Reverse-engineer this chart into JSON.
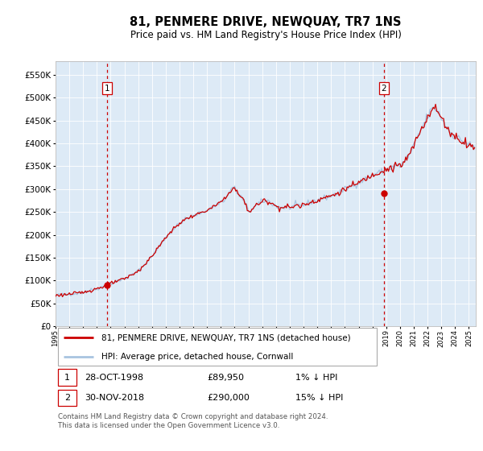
{
  "title": "81, PENMERE DRIVE, NEWQUAY, TR7 1NS",
  "subtitle": "Price paid vs. HM Land Registry's House Price Index (HPI)",
  "legend_line1": "81, PENMERE DRIVE, NEWQUAY, TR7 1NS (detached house)",
  "legend_line2": "HPI: Average price, detached house, Cornwall",
  "sale1_date": "28-OCT-1998",
  "sale1_price": 89950,
  "sale2_date": "30-NOV-2018",
  "sale2_price": 290000,
  "sale1_hpi_pct": "1% ↓ HPI",
  "sale2_hpi_pct": "15% ↓ HPI",
  "footer": "Contains HM Land Registry data © Crown copyright and database right 2024.\nThis data is licensed under the Open Government Licence v3.0.",
  "hpi_color": "#a8c4e0",
  "price_color": "#cc0000",
  "bg_color": "#ddeaf6",
  "vline_color": "#cc0000",
  "ylim_max": 580000,
  "xlim_start": 1995.0,
  "xlim_end": 2025.5
}
